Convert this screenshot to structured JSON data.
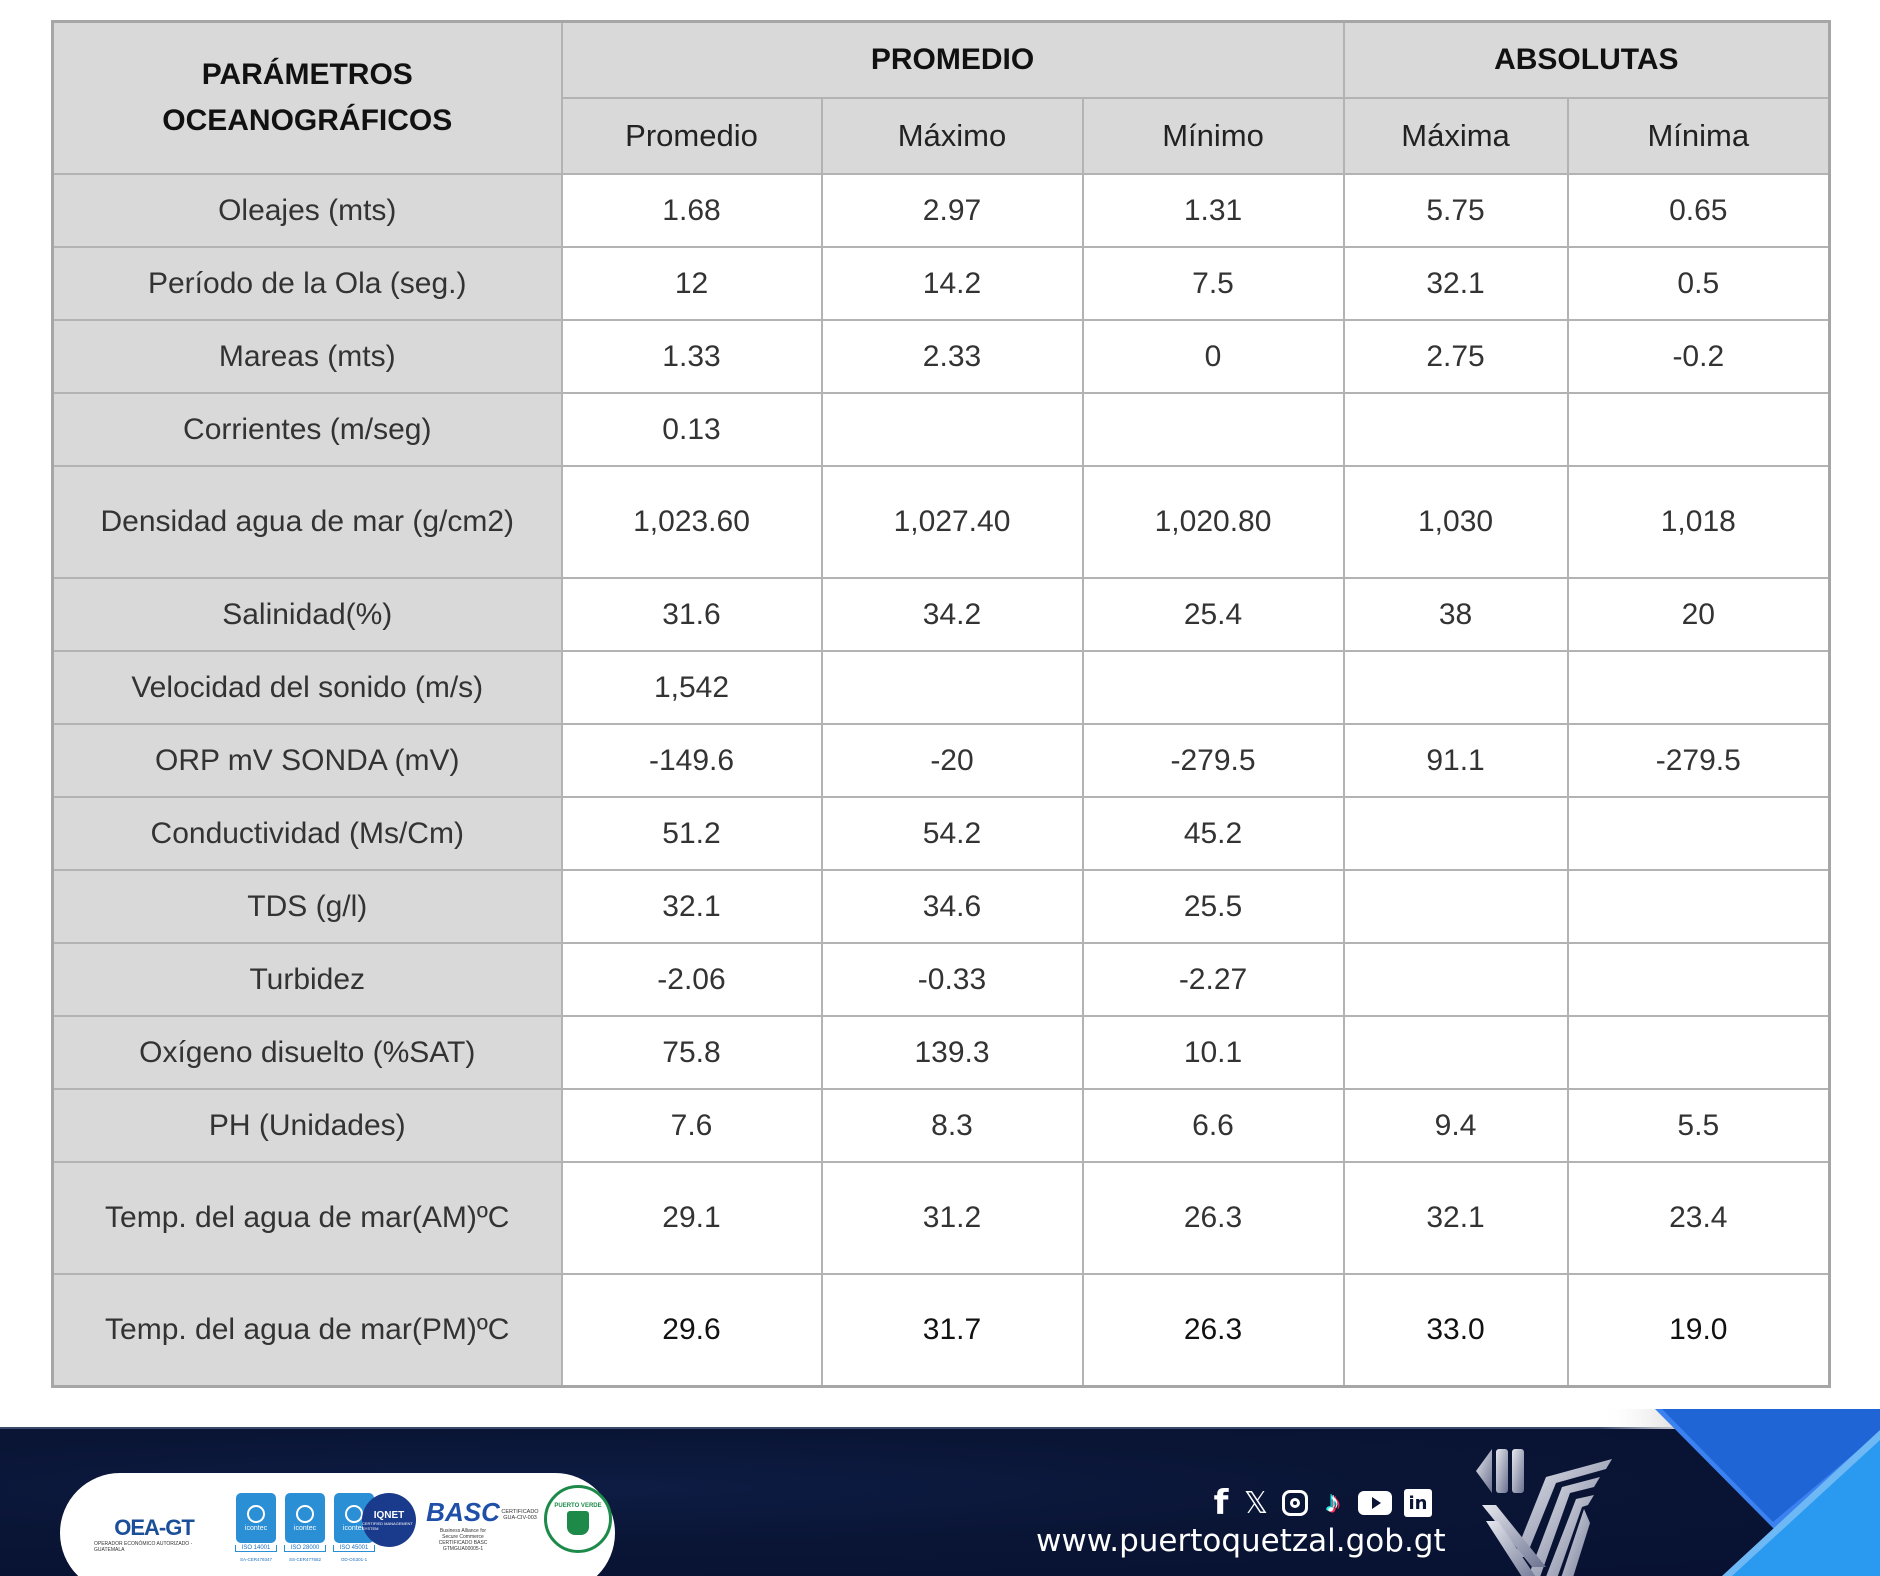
{
  "table": {
    "param_header_lines": [
      "PARÁMETROS",
      "OCEANOGRÁFICOS"
    ],
    "groups": [
      {
        "label": "PROMEDIO",
        "colspan": 3
      },
      {
        "label": "ABSOLUTAS",
        "colspan": 2
      }
    ],
    "subheaders": [
      "Promedio",
      "Máximo",
      "Mínimo",
      "Máxima",
      "Mínima"
    ],
    "rows": [
      {
        "param": "Oleajes (mts)",
        "values": [
          "1.68",
          "2.97",
          "1.31",
          "5.75",
          "0.65"
        ]
      },
      {
        "param": "Período de la Ola (seg.)",
        "values": [
          "12",
          "14.2",
          "7.5",
          "32.1",
          "0.5"
        ]
      },
      {
        "param": "Mareas (mts)",
        "values": [
          "1.33",
          "2.33",
          "0",
          "2.75",
          "-0.2"
        ]
      },
      {
        "param": "Corrientes (m/seg)",
        "values": [
          "0.13",
          "",
          "",
          "",
          ""
        ]
      },
      {
        "param": "Densidad agua de mar (g/cm2)",
        "values": [
          "1,023.60",
          "1,027.40",
          "1,020.80",
          "1,030",
          "1,018"
        ]
      },
      {
        "param": "Salinidad(%)",
        "values": [
          "31.6",
          "34.2",
          "25.4",
          "38",
          "20"
        ]
      },
      {
        "param": "Velocidad del sonido (m/s)",
        "values": [
          "1,542",
          "",
          "",
          "",
          ""
        ]
      },
      {
        "param": "ORP mV SONDA (mV)",
        "values": [
          "-149.6",
          "-20",
          "-279.5",
          "91.1",
          "-279.5"
        ]
      },
      {
        "param": "Conductividad (Ms/Cm)",
        "values": [
          "51.2",
          "54.2",
          "45.2",
          "",
          ""
        ]
      },
      {
        "param": "TDS (g/l)",
        "values": [
          "32.1",
          "34.6",
          "25.5",
          "",
          ""
        ]
      },
      {
        "param": "Turbidez",
        "values": [
          "-2.06",
          "-0.33",
          "-2.27",
          "",
          ""
        ]
      },
      {
        "param": "Oxígeno disuelto (%SAT)",
        "values": [
          "75.8",
          "139.3",
          "10.1",
          "",
          ""
        ]
      },
      {
        "param": "PH (Unidades)",
        "values": [
          "7.6",
          "8.3",
          "6.6",
          "9.4",
          "5.5"
        ]
      },
      {
        "param": "Temp. del agua de mar(AM)ºC",
        "values": [
          "29.1",
          "31.2",
          "26.3",
          "32.1",
          "23.4"
        ]
      },
      {
        "param": "Temp. del agua de mar(PM)ºC",
        "values": [
          "29.6",
          "31.7",
          "26.3",
          "33.0",
          "19.0"
        ]
      }
    ]
  },
  "footer": {
    "certifications": {
      "oea": {
        "title": "OEA-GT",
        "subtitle": "OPERADOR ECONÓMICO AUTORIZADO - GUATEMALA"
      },
      "icontec": [
        {
          "brand": "icontec",
          "iso": "ISO 14001",
          "code": "SA-CER479347"
        },
        {
          "brand": "icontec",
          "iso": "ISO 28000",
          "code": "SS-CER477682"
        },
        {
          "brand": "icontec",
          "iso": "ISO 45001",
          "code": "OD-OS301-1"
        }
      ],
      "iqnet": {
        "title": "IQNET",
        "subtitle": "CERTIFIED MANAGEMENT SYSTEM"
      },
      "basc": {
        "title": "BASC",
        "tagline": "Business Alliance for Secure Commerce",
        "cert": "CERTIFICADO BASC GTMGUA00005-1"
      },
      "certificado": "CERTIFICADO GUA-CIV-003",
      "puerto_verde": {
        "title": "PUERTO VERDE"
      }
    },
    "social_icons": [
      "facebook-icon",
      "x-icon",
      "instagram-icon",
      "tiktok-icon",
      "youtube-icon",
      "linkedin-icon"
    ],
    "social_glyphs": {
      "facebook": "f",
      "x": "𝕏",
      "tiktok": "♪",
      "linkedin": "in"
    },
    "website": "www.puertoquetzal.gob.gt"
  },
  "colors": {
    "header_bg": "#d9d9d9",
    "border": "#b3b3b3",
    "footer_bg": "#0a1535",
    "accent_blue_dark": "#1f63d6",
    "accent_blue_light": "#2a9af0"
  }
}
